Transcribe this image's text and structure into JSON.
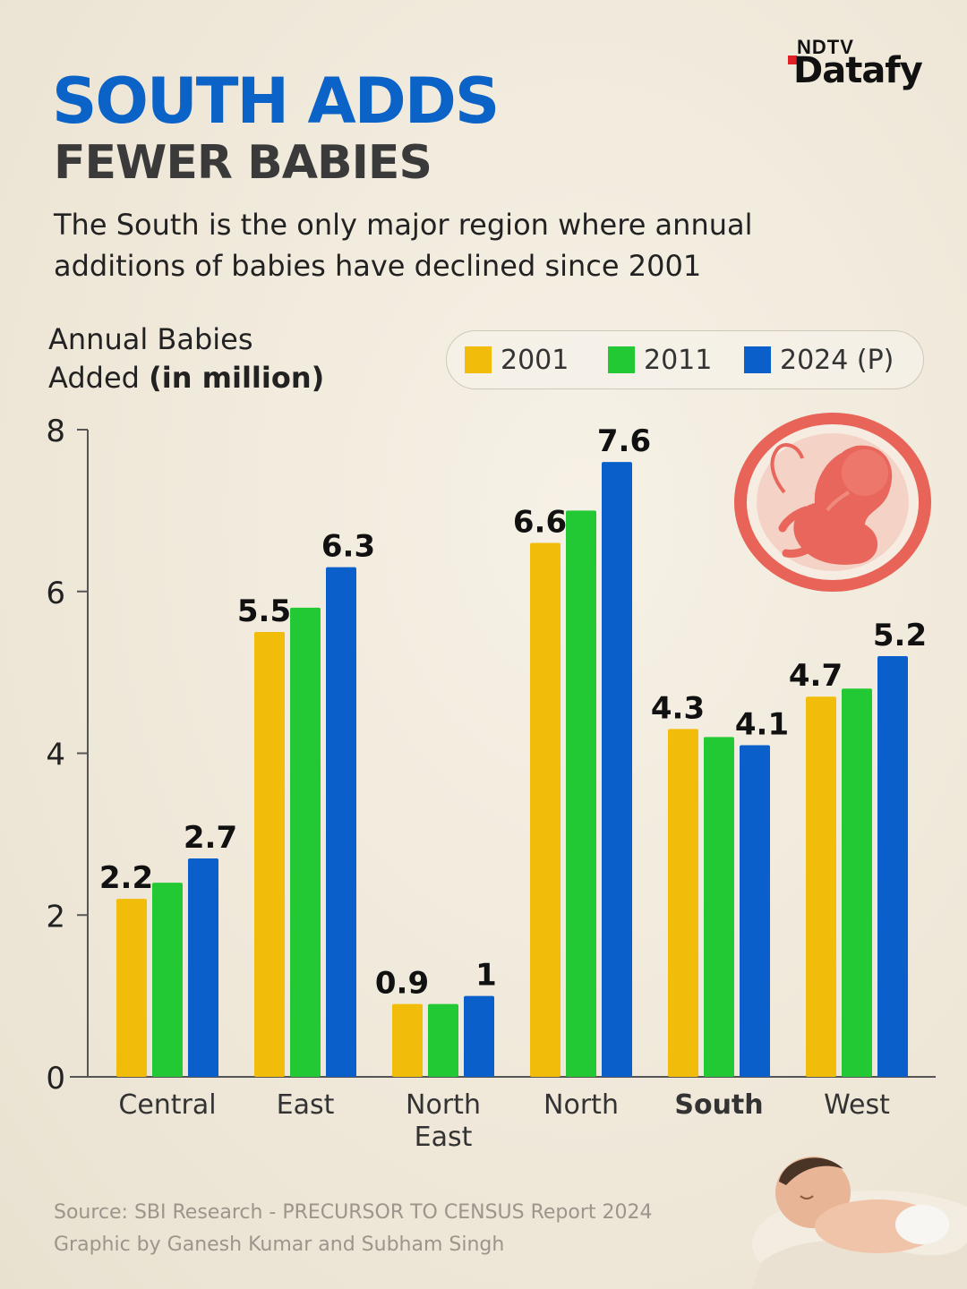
{
  "brand": {
    "top": "NDTV",
    "name": "Datafy"
  },
  "header": {
    "title_line1": "SOUTH ADDS",
    "title_line2": "FEWER BABIES",
    "subtitle": "The South is the only major region where annual additions of babies have declined since 2001"
  },
  "axis_title": {
    "line1": "Annual Babies",
    "line2_plain": "Added ",
    "line2_bold": "(in million)"
  },
  "legend": [
    {
      "label": "2001",
      "color": "#f2bd0a"
    },
    {
      "label": "2011",
      "color": "#22c934"
    },
    {
      "label": "2024 (P)",
      "color": "#0a5fcb"
    }
  ],
  "chart_data": {
    "type": "bar",
    "ylabel": "Annual Babies Added (in million)",
    "ylim": [
      0,
      8
    ],
    "yticks": [
      0,
      2,
      4,
      6,
      8
    ],
    "categories": [
      "Central",
      "East",
      "North East",
      "North",
      "South",
      "West"
    ],
    "category_lines": [
      [
        "Central"
      ],
      [
        "East"
      ],
      [
        "North",
        "East"
      ],
      [
        "North"
      ],
      [
        "South"
      ],
      [
        "West"
      ]
    ],
    "bold_category": "South",
    "series": [
      {
        "name": "2001",
        "color": "#f2bd0a",
        "values": [
          2.2,
          5.5,
          0.9,
          6.6,
          4.3,
          4.7
        ],
        "labels": [
          "2.2",
          "5.5",
          "0.9",
          "6.6",
          "4.3",
          "4.7"
        ]
      },
      {
        "name": "2011",
        "color": "#22c934",
        "values": [
          2.4,
          5.8,
          0.9,
          7.0,
          4.2,
          4.8
        ],
        "labels": [
          "",
          "",
          "",
          "",
          "",
          ""
        ]
      },
      {
        "name": "2024 (P)",
        "color": "#0a5fcb",
        "values": [
          2.7,
          6.3,
          1.0,
          7.6,
          4.1,
          5.2
        ],
        "labels": [
          "2.7",
          "6.3",
          "1",
          "7.6",
          "4.1",
          "5.2"
        ]
      }
    ],
    "grid": false,
    "legend_position": "top-right"
  },
  "footer": {
    "source": "Source: SBI Research - PRECURSOR TO CENSUS Report 2024",
    "credit": "Graphic by Ganesh Kumar and Subham Singh"
  },
  "icons": {
    "embryo": "embryo-icon",
    "baby": "sleeping-baby-icon"
  }
}
